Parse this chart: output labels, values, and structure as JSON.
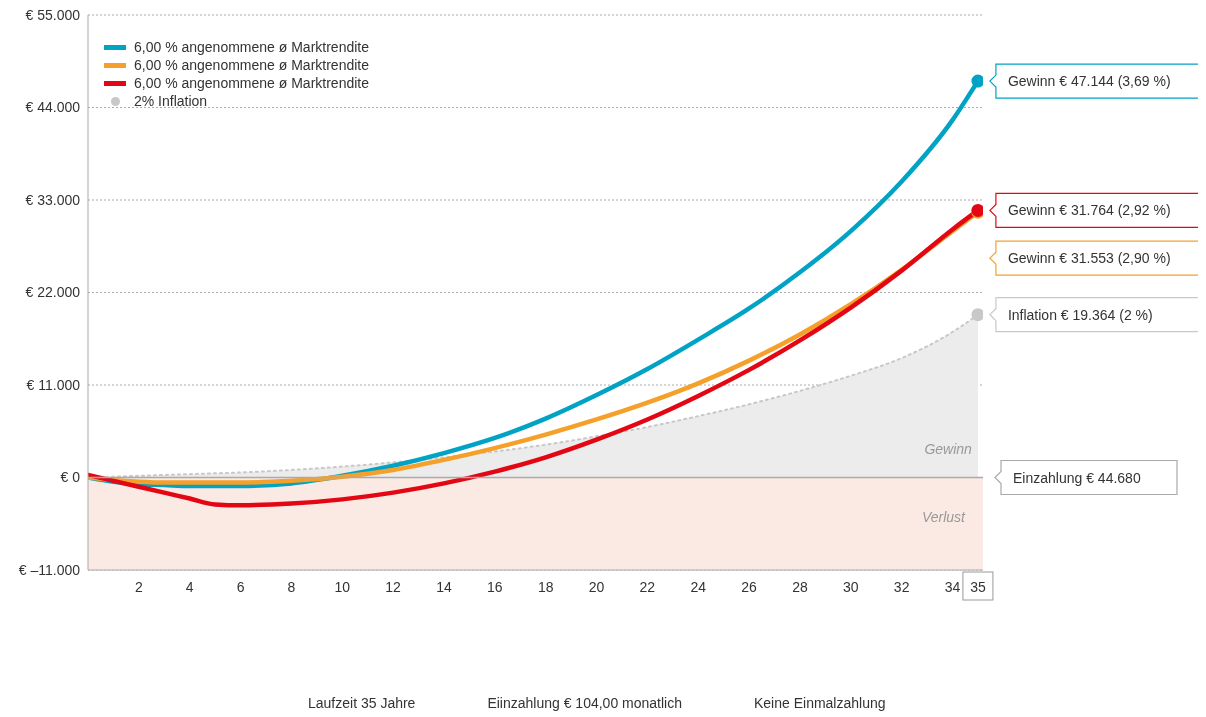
{
  "chart_data": {
    "type": "line",
    "x": [
      0,
      1,
      2,
      3,
      4,
      5,
      6,
      8,
      10,
      12,
      14,
      16,
      18,
      20,
      22,
      24,
      26,
      28,
      30,
      32,
      34,
      35
    ],
    "series": [
      {
        "name": "6,00 % angenommene ø Marktrendite",
        "color": "#00a3c4",
        "values": [
          0,
          -500,
          -800,
          -900,
          -1000,
          -1000,
          -1000,
          -700,
          200,
          1400,
          2900,
          4700,
          7000,
          9800,
          12900,
          16400,
          20100,
          24400,
          29300,
          35200,
          42500,
          47144
        ],
        "value_labels": [
          null,
          null,
          null,
          null,
          null,
          null,
          null,
          null,
          null,
          null,
          null,
          null,
          null,
          null,
          null,
          null,
          null,
          null,
          null,
          null,
          null,
          "Gewinn € 47.144 (3,69 %)"
        ]
      },
      {
        "name": "6,00 % angenommene ø Marktrendite",
        "color": "#f5a02a",
        "values": [
          0,
          -300,
          -500,
          -600,
          -600,
          -600,
          -600,
          -400,
          100,
          900,
          2100,
          3500,
          5100,
          6900,
          8900,
          11200,
          13900,
          17000,
          20600,
          24700,
          29300,
          31553
        ],
        "value_labels": [
          null,
          null,
          null,
          null,
          null,
          null,
          null,
          null,
          null,
          null,
          null,
          null,
          null,
          null,
          null,
          null,
          null,
          null,
          null,
          null,
          null,
          "Gewinn € 31.553 (2,90 %)"
        ]
      },
      {
        "name": "6,00 % angenommene ø Marktrendite",
        "color": "#e30613",
        "values": [
          300,
          -400,
          -1100,
          -1800,
          -2500,
          -3200,
          -3300,
          -3100,
          -2600,
          -1800,
          -700,
          700,
          2400,
          4500,
          6900,
          9700,
          12800,
          16300,
          20200,
          24600,
          29500,
          31764
        ],
        "value_labels": [
          null,
          null,
          null,
          null,
          null,
          null,
          null,
          null,
          null,
          null,
          null,
          null,
          null,
          null,
          null,
          null,
          null,
          null,
          null,
          null,
          null,
          "Gewinn € 31.764 (2,92 %)"
        ]
      },
      {
        "name": "2% Inflation",
        "type": "area",
        "color": "#c8c8c8",
        "line_style": "dotted",
        "values": [
          0,
          100,
          200,
          300,
          400,
          500,
          600,
          900,
          1300,
          1800,
          2400,
          3100,
          3900,
          4900,
          6000,
          7300,
          8700,
          10300,
          12100,
          14200,
          17300,
          19364
        ],
        "value_labels": [
          null,
          null,
          null,
          null,
          null,
          null,
          null,
          null,
          null,
          null,
          null,
          null,
          null,
          null,
          null,
          null,
          null,
          null,
          null,
          null,
          null,
          "Inflation € 19.364 (2 %)"
        ]
      }
    ],
    "xlim": [
      0,
      35.2
    ],
    "xticks": [
      2,
      4,
      6,
      8,
      10,
      12,
      14,
      16,
      18,
      20,
      22,
      24,
      26,
      28,
      30,
      32,
      34,
      35
    ],
    "ylim": [
      -11000,
      55000
    ],
    "yticks": [
      {
        "value": -11000,
        "label": "€ –11.000"
      },
      {
        "value": 0,
        "label": "€ 0"
      },
      {
        "value": 11000,
        "label": "€ 11.000"
      },
      {
        "value": 22000,
        "label": "€ 22.000"
      },
      {
        "value": 33000,
        "label": "€ 33.000"
      },
      {
        "value": 44000,
        "label": "€ 44.000"
      },
      {
        "value": 55000,
        "label": "€ 55.000"
      }
    ],
    "grid": "y",
    "legend": "top left",
    "marker": "none",
    "line_style": "solid",
    "ref_lines": [
      {
        "axis": "y",
        "value": 0,
        "label": "Einzahlung € 44.680",
        "color": "#aaaaaa",
        "line_style": "solid"
      }
    ],
    "bands": [
      {
        "axis": "y",
        "from": -11000,
        "to": 0,
        "label": "Verlust",
        "color": "#fbeae4"
      }
    ],
    "annotations": [
      {
        "text": "Gewinn",
        "x": 35,
        "y": 0
      },
      "Laufzeit 35 Jahre",
      "Eiinzahlung € 104,00 monatlich",
      "Keine Einmalzahlung"
    ]
  }
}
